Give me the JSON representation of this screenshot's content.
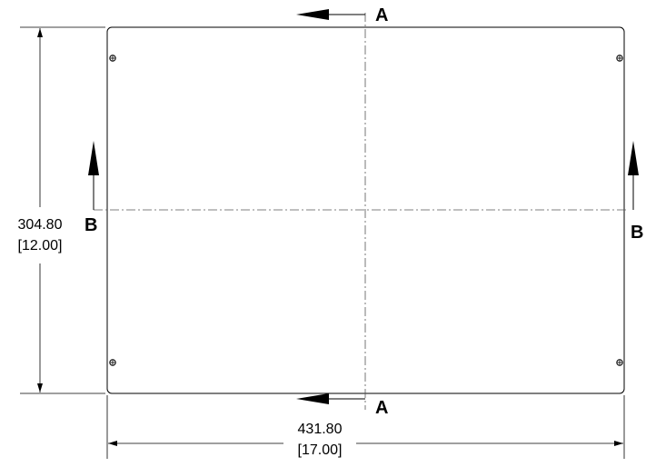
{
  "section_labels": {
    "a_top": "A",
    "a_bottom": "A",
    "b_left": "B",
    "b_right": "B"
  },
  "dimensions": {
    "height_mm": "304.80",
    "height_in": "[12.00]",
    "width_mm": "431.80",
    "width_in": "[17.00]"
  },
  "colors": {
    "line": "#000000",
    "centerline": "#666666",
    "background": "#ffffff"
  }
}
